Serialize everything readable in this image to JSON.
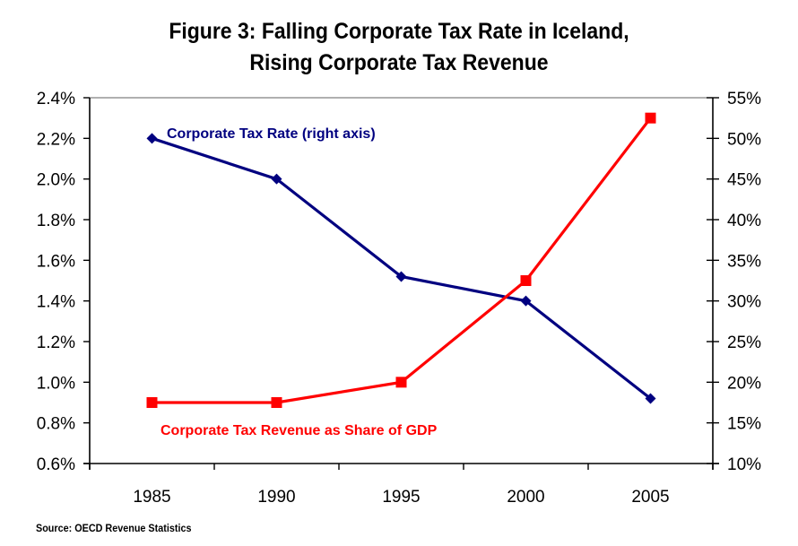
{
  "chart_data": {
    "type": "line",
    "title": "Figure 3:  Falling Corporate Tax Rate in Iceland,",
    "subtitle": "Rising Corporate Tax Revenue",
    "xlabel": "",
    "categories": [
      "1985",
      "1990",
      "1995",
      "2000",
      "2005"
    ],
    "left_axis": {
      "ylim": [
        0.6,
        2.4
      ],
      "ticks": [
        "0.6%",
        "0.8%",
        "1.0%",
        "1.2%",
        "1.4%",
        "1.6%",
        "1.8%",
        "2.0%",
        "2.2%",
        "2.4%"
      ]
    },
    "right_axis": {
      "ylim": [
        10,
        55
      ],
      "ticks": [
        "10%",
        "15%",
        "20%",
        "25%",
        "30%",
        "35%",
        "40%",
        "45%",
        "50%",
        "55%"
      ]
    },
    "series": [
      {
        "name": "Corporate Tax Rate (right axis)",
        "axis": "right",
        "unit": "%",
        "values": [
          50,
          45,
          33,
          30,
          18
        ],
        "color": "#000080",
        "marker": "diamond"
      },
      {
        "name": "Corporate Tax Revenue as Share of GDP",
        "axis": "left",
        "unit": "%",
        "values": [
          0.9,
          0.9,
          1.0,
          1.5,
          2.3
        ],
        "color": "#ff0000",
        "marker": "square"
      }
    ],
    "grid": false,
    "legend": "inline labels near each series",
    "source": "Source: OECD Revenue Statistics"
  }
}
